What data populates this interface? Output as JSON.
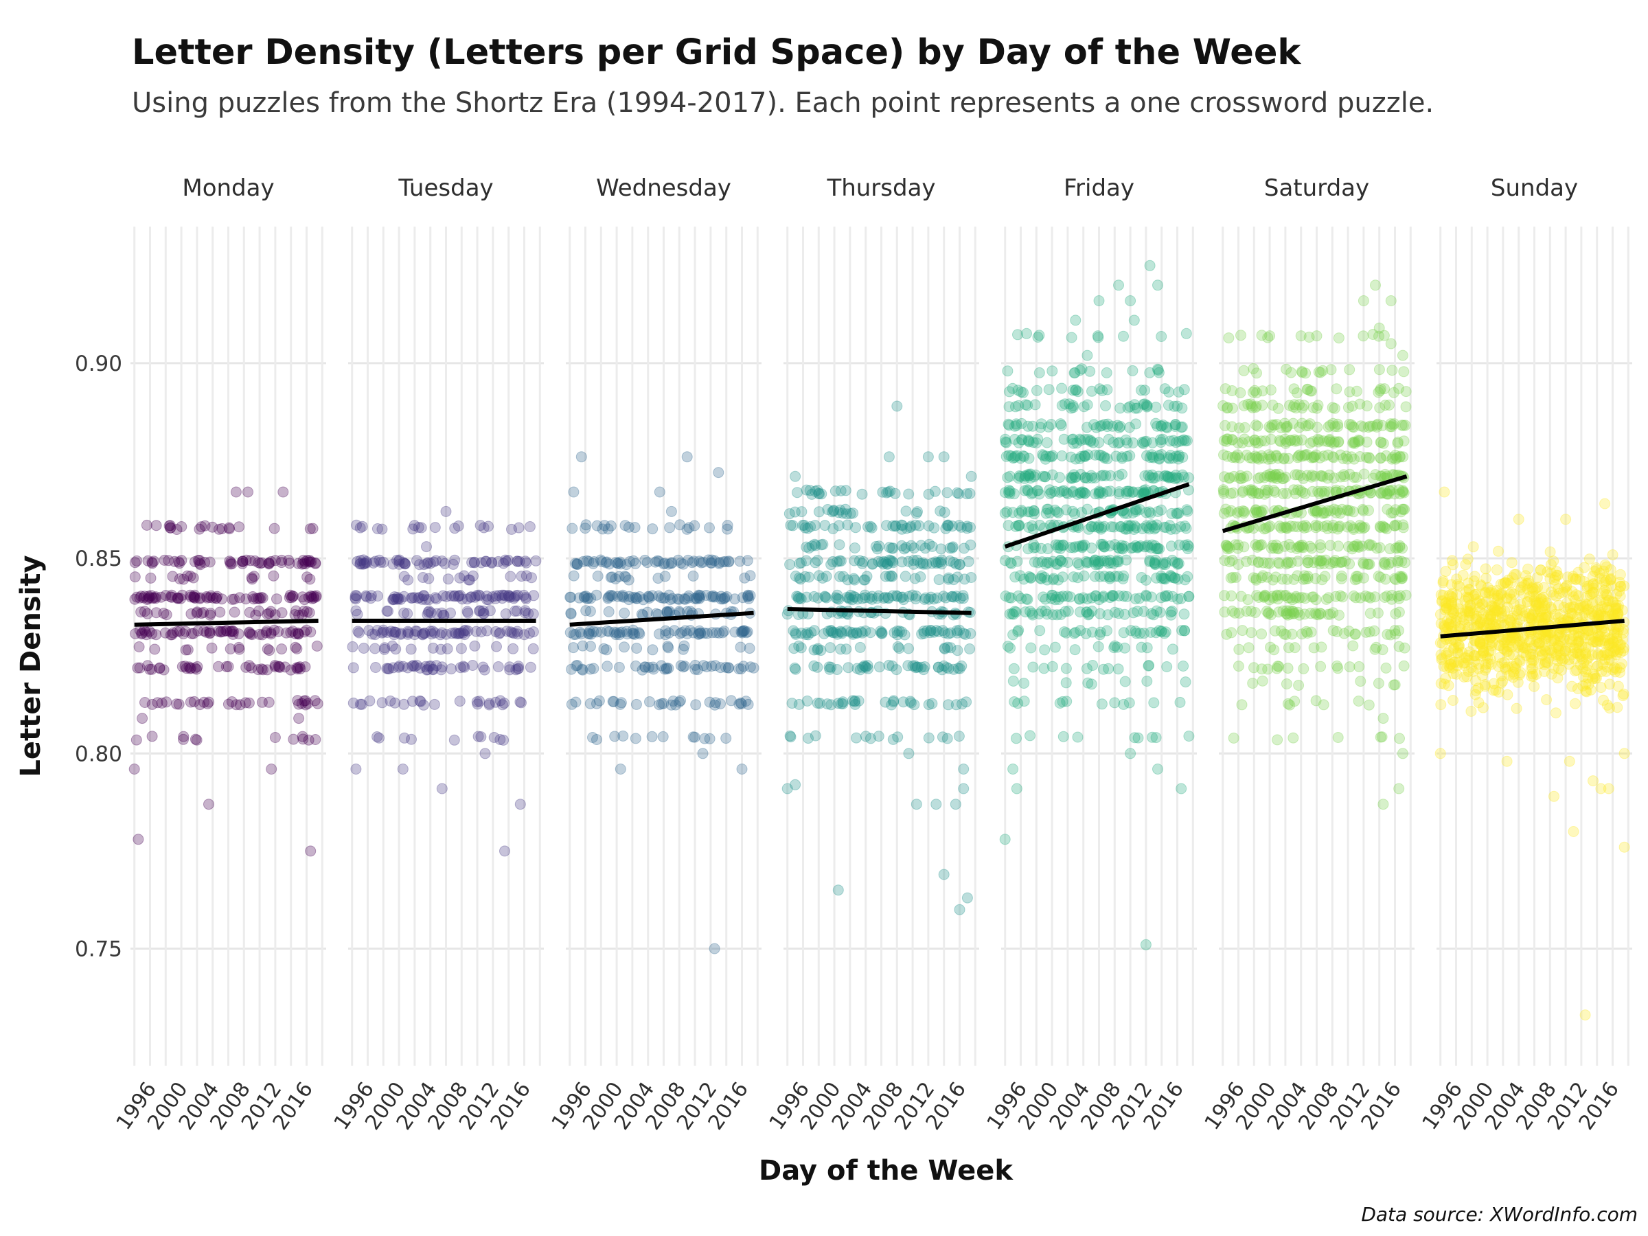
{
  "chart_data": {
    "type": "scatter",
    "title": "Letter Density (Letters per Grid Space) by Day of the Week",
    "subtitle": "Using puzzles from the Shortz Era (1994-2017). Each point represents a one crossword puzzle.",
    "xlabel": "Day of the Week",
    "ylabel": "Letter Density",
    "caption": "Data source: XWordInfo.com",
    "ylim": [
      0.72,
      0.935
    ],
    "xlim": [
      1993.5,
      2018.5
    ],
    "yticks": [
      0.75,
      0.8,
      0.85,
      0.9
    ],
    "ytick_labels": [
      "0.75",
      "0.80",
      "0.85",
      "0.90"
    ],
    "xticks": [
      1996,
      2000,
      2004,
      2008,
      2012,
      2016
    ],
    "xtick_labels": [
      "1996",
      "2000",
      "2004",
      "2008",
      "2012",
      "2016"
    ],
    "grid": true,
    "point_alpha": 0.3,
    "trend_color": "#000000",
    "panels": [
      {
        "day": "Monday",
        "color": "#440154",
        "trend": {
          "x": [
            1994,
            2017.5
          ],
          "y": [
            0.833,
            0.834
          ]
        },
        "bands": [
          0.804,
          0.813,
          0.822,
          0.827,
          0.831,
          0.836,
          0.84,
          0.845,
          0.849,
          0.858
        ],
        "band_counts": [
          12,
          30,
          40,
          14,
          60,
          30,
          70,
          14,
          55,
          20
        ],
        "outliers": [
          [
            1994.5,
            0.778
          ],
          [
            1994.0,
            0.796
          ],
          [
            2003.5,
            0.787
          ],
          [
            2011.5,
            0.796
          ],
          [
            2016.5,
            0.775
          ],
          [
            2007.0,
            0.867
          ],
          [
            2008.5,
            0.867
          ],
          [
            2013.0,
            0.867
          ],
          [
            1995.0,
            0.809
          ],
          [
            2015.0,
            0.809
          ]
        ]
      },
      {
        "day": "Tuesday",
        "color": "#443983",
        "trend": {
          "x": [
            1994,
            2017.5
          ],
          "y": [
            0.834,
            0.834
          ]
        },
        "bands": [
          0.804,
          0.813,
          0.822,
          0.827,
          0.831,
          0.836,
          0.84,
          0.845,
          0.849,
          0.858
        ],
        "band_counts": [
          10,
          25,
          40,
          16,
          60,
          30,
          70,
          14,
          55,
          18
        ],
        "outliers": [
          [
            1994.5,
            0.796
          ],
          [
            2000.5,
            0.796
          ],
          [
            2005.5,
            0.791
          ],
          [
            2013.5,
            0.775
          ],
          [
            2015.5,
            0.787
          ],
          [
            2011.0,
            0.8
          ],
          [
            2006.0,
            0.862
          ],
          [
            2003.5,
            0.853
          ]
        ]
      },
      {
        "day": "Wednesday",
        "color": "#31688e",
        "trend": {
          "x": [
            1994,
            2017.5
          ],
          "y": [
            0.833,
            0.836
          ]
        },
        "bands": [
          0.804,
          0.813,
          0.822,
          0.827,
          0.831,
          0.836,
          0.84,
          0.845,
          0.849,
          0.858
        ],
        "band_counts": [
          12,
          30,
          40,
          14,
          60,
          30,
          70,
          14,
          55,
          20
        ],
        "outliers": [
          [
            2000.5,
            0.796
          ],
          [
            2012.5,
            0.75
          ],
          [
            2011.0,
            0.8
          ],
          [
            2016.0,
            0.796
          ],
          [
            1995.5,
            0.876
          ],
          [
            2009.0,
            0.876
          ],
          [
            2013.0,
            0.872
          ],
          [
            1994.5,
            0.867
          ],
          [
            2005.5,
            0.867
          ],
          [
            2007.0,
            0.862
          ]
        ]
      },
      {
        "day": "Thursday",
        "color": "#21918c",
        "trend": {
          "x": [
            1994,
            2017.5
          ],
          "y": [
            0.837,
            0.836
          ]
        },
        "bands": [
          0.804,
          0.813,
          0.822,
          0.827,
          0.831,
          0.836,
          0.84,
          0.845,
          0.849,
          0.853,
          0.858,
          0.862,
          0.867
        ],
        "band_counts": [
          14,
          30,
          40,
          20,
          60,
          34,
          60,
          30,
          50,
          30,
          40,
          20,
          26
        ],
        "outliers": [
          [
            2000.5,
            0.765
          ],
          [
            2014.0,
            0.769
          ],
          [
            2016.0,
            0.76
          ],
          [
            2017.0,
            0.763
          ],
          [
            2015.5,
            0.787
          ],
          [
            2016.5,
            0.791
          ],
          [
            2010.5,
            0.787
          ],
          [
            2013.0,
            0.787
          ],
          [
            1994.0,
            0.791
          ],
          [
            1995.0,
            0.792
          ],
          [
            2008.0,
            0.889
          ],
          [
            1995.0,
            0.871
          ],
          [
            2007.0,
            0.876
          ],
          [
            2012.0,
            0.876
          ],
          [
            2014.0,
            0.876
          ],
          [
            2017.5,
            0.871
          ],
          [
            2009.5,
            0.8
          ],
          [
            2016.5,
            0.796
          ]
        ]
      },
      {
        "day": "Friday",
        "color": "#27ad81",
        "trend": {
          "x": [
            1994,
            2017.5
          ],
          "y": [
            0.853,
            0.869
          ]
        },
        "bands": [
          0.804,
          0.813,
          0.818,
          0.822,
          0.827,
          0.831,
          0.836,
          0.84,
          0.845,
          0.849,
          0.853,
          0.858,
          0.862,
          0.867,
          0.871,
          0.876,
          0.88,
          0.884,
          0.889,
          0.893,
          0.898,
          0.907
        ],
        "band_counts": [
          8,
          10,
          8,
          14,
          14,
          30,
          40,
          50,
          44,
          56,
          60,
          60,
          54,
          66,
          60,
          56,
          50,
          40,
          30,
          22,
          14,
          10
        ],
        "outliers": [
          [
            1994.0,
            0.778
          ],
          [
            1995.0,
            0.796
          ],
          [
            1995.5,
            0.791
          ],
          [
            2012.0,
            0.751
          ],
          [
            2010.0,
            0.8
          ],
          [
            2013.5,
            0.796
          ],
          [
            2016.5,
            0.791
          ],
          [
            2011.0,
            0.804
          ],
          [
            2008.0,
            0.813
          ],
          [
            2013.0,
            0.813
          ],
          [
            2012.5,
            0.925
          ],
          [
            2013.5,
            0.92
          ],
          [
            2008.5,
            0.92
          ],
          [
            2006.0,
            0.916
          ],
          [
            2010.0,
            0.916
          ],
          [
            2010.5,
            0.911
          ],
          [
            2003.0,
            0.911
          ],
          [
            2004.5,
            0.902
          ],
          [
            2016.0,
            0.889
          ]
        ]
      },
      {
        "day": "Saturday",
        "color": "#7ad151",
        "trend": {
          "x": [
            1994,
            2017.5
          ],
          "y": [
            0.857,
            0.871
          ]
        },
        "bands": [
          0.804,
          0.813,
          0.818,
          0.822,
          0.827,
          0.831,
          0.836,
          0.84,
          0.845,
          0.849,
          0.853,
          0.858,
          0.862,
          0.867,
          0.871,
          0.876,
          0.88,
          0.884,
          0.889,
          0.893,
          0.898,
          0.907
        ],
        "band_counts": [
          6,
          8,
          8,
          16,
          14,
          28,
          40,
          50,
          40,
          52,
          56,
          60,
          60,
          70,
          64,
          64,
          56,
          50,
          34,
          24,
          16,
          10
        ],
        "outliers": [
          [
            2003.0,
            0.804
          ],
          [
            2014.5,
            0.787
          ],
          [
            2016.5,
            0.791
          ],
          [
            2017.0,
            0.8
          ],
          [
            2014.5,
            0.809
          ],
          [
            2013.5,
            0.92
          ],
          [
            2015.5,
            0.916
          ],
          [
            2012.0,
            0.916
          ],
          [
            2014.0,
            0.909
          ],
          [
            2015.5,
            0.905
          ],
          [
            2000.0,
            0.907
          ],
          [
            2004.0,
            0.907
          ],
          [
            2006.0,
            0.907
          ],
          [
            2017.0,
            0.902
          ]
        ]
      },
      {
        "day": "Sunday",
        "color": "#fde725",
        "trend": {
          "x": [
            1994,
            2017.5
          ],
          "y": [
            0.83,
            0.834
          ]
        },
        "spread": [
          0.808,
          0.856
        ],
        "cloud_count": 900,
        "outliers": [
          [
            2012.5,
            0.733
          ],
          [
            2011.0,
            0.78
          ],
          [
            2017.5,
            0.776
          ],
          [
            2008.5,
            0.789
          ],
          [
            2013.5,
            0.793
          ],
          [
            2014.5,
            0.791
          ],
          [
            2015.5,
            0.791
          ],
          [
            2010.5,
            0.798
          ],
          [
            1994.0,
            0.8
          ],
          [
            2002.5,
            0.798
          ],
          [
            1994.5,
            0.867
          ],
          [
            2015.0,
            0.864
          ],
          [
            2010.0,
            0.86
          ],
          [
            2004.0,
            0.86
          ],
          [
            2017.5,
            0.8
          ]
        ]
      }
    ]
  }
}
